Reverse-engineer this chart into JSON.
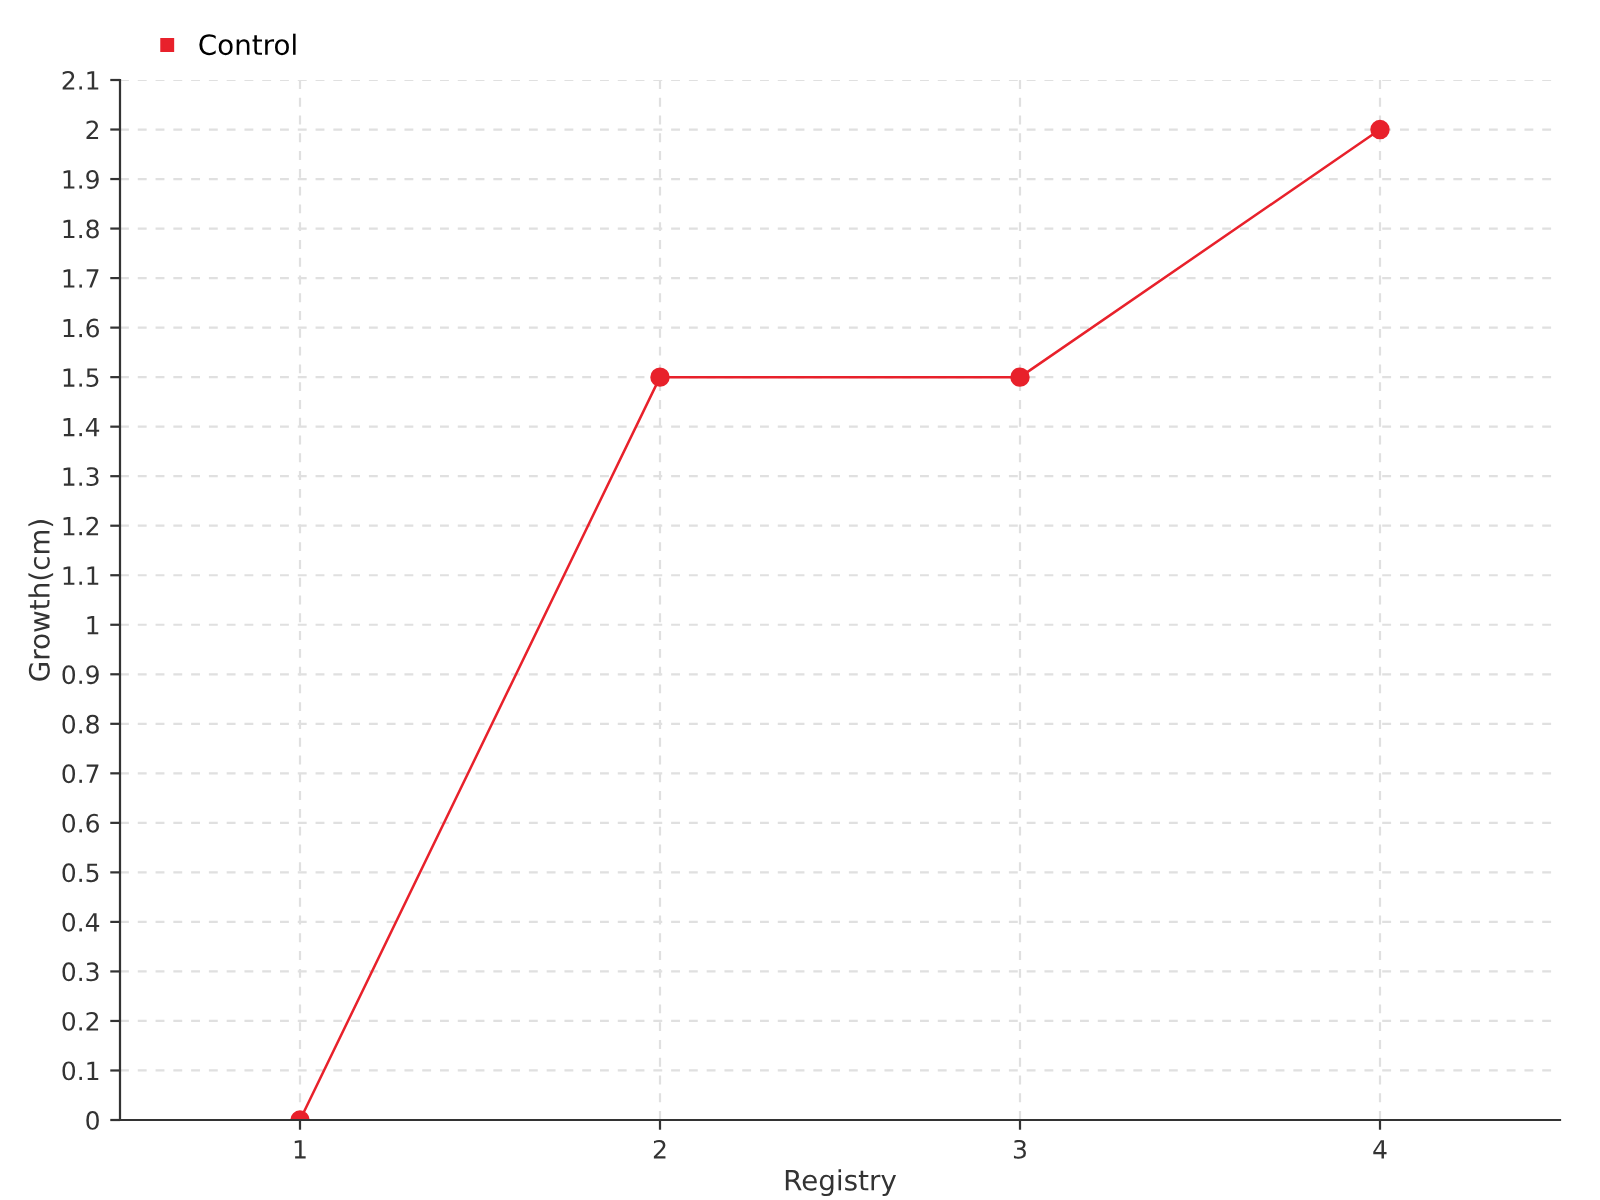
{
  "chart_data": {
    "type": "line",
    "xlabel": "Registry",
    "ylabel": "Growth(cm)",
    "categories": [
      "1",
      "2",
      "3",
      "4"
    ],
    "series": [
      {
        "name": "Control",
        "color": "#e8212b",
        "values": [
          0,
          1.5,
          1.5,
          2
        ]
      }
    ],
    "ylim": [
      0,
      2.1
    ],
    "yticks": [
      0,
      0.1,
      0.2,
      0.3,
      0.4,
      0.5,
      0.6,
      0.7,
      0.8,
      0.9,
      1,
      1.1,
      1.2,
      1.3,
      1.4,
      1.5,
      1.6,
      1.7,
      1.8,
      1.9,
      2,
      2.1
    ],
    "grid": true,
    "legend": "top left",
    "marker": "circle",
    "line_style": "solid"
  }
}
